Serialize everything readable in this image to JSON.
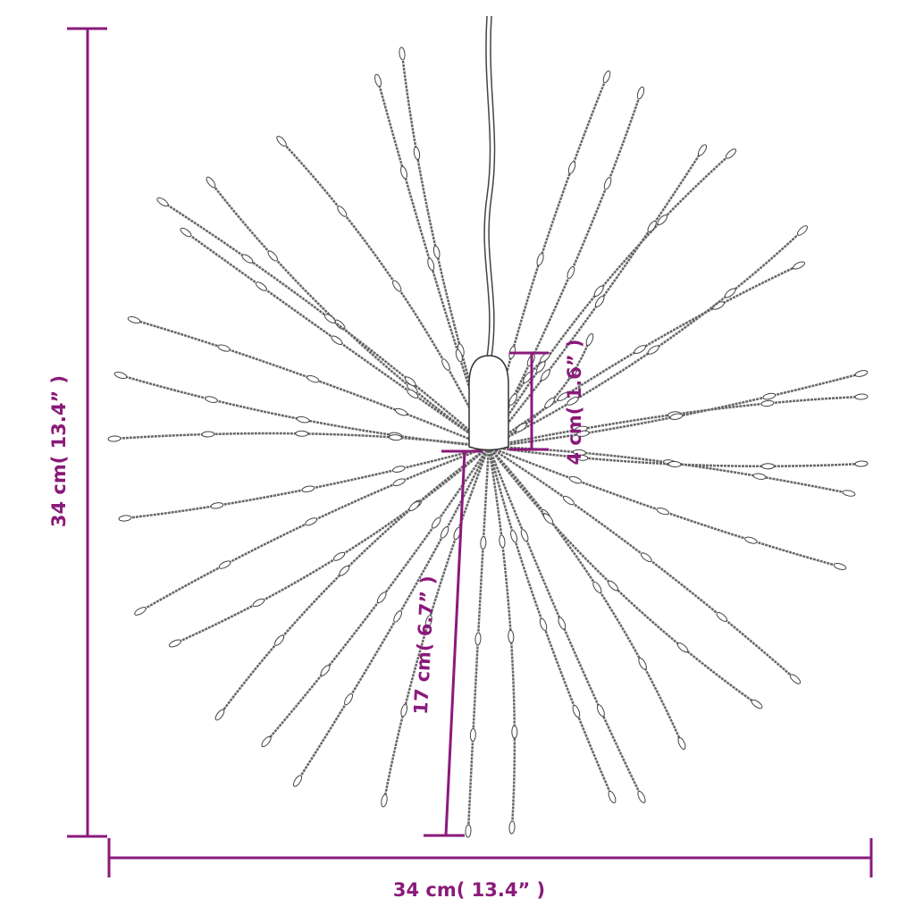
{
  "colors": {
    "dimension": "#8a1a7a",
    "wire": "#555555"
  },
  "dimensions": {
    "height_label": "34 cm( 13.4” )",
    "width_label": "34 cm( 13.4” )",
    "cap_label": "4 cm( 1.6” )",
    "strand_label": "17 cm( 6.7” )"
  }
}
